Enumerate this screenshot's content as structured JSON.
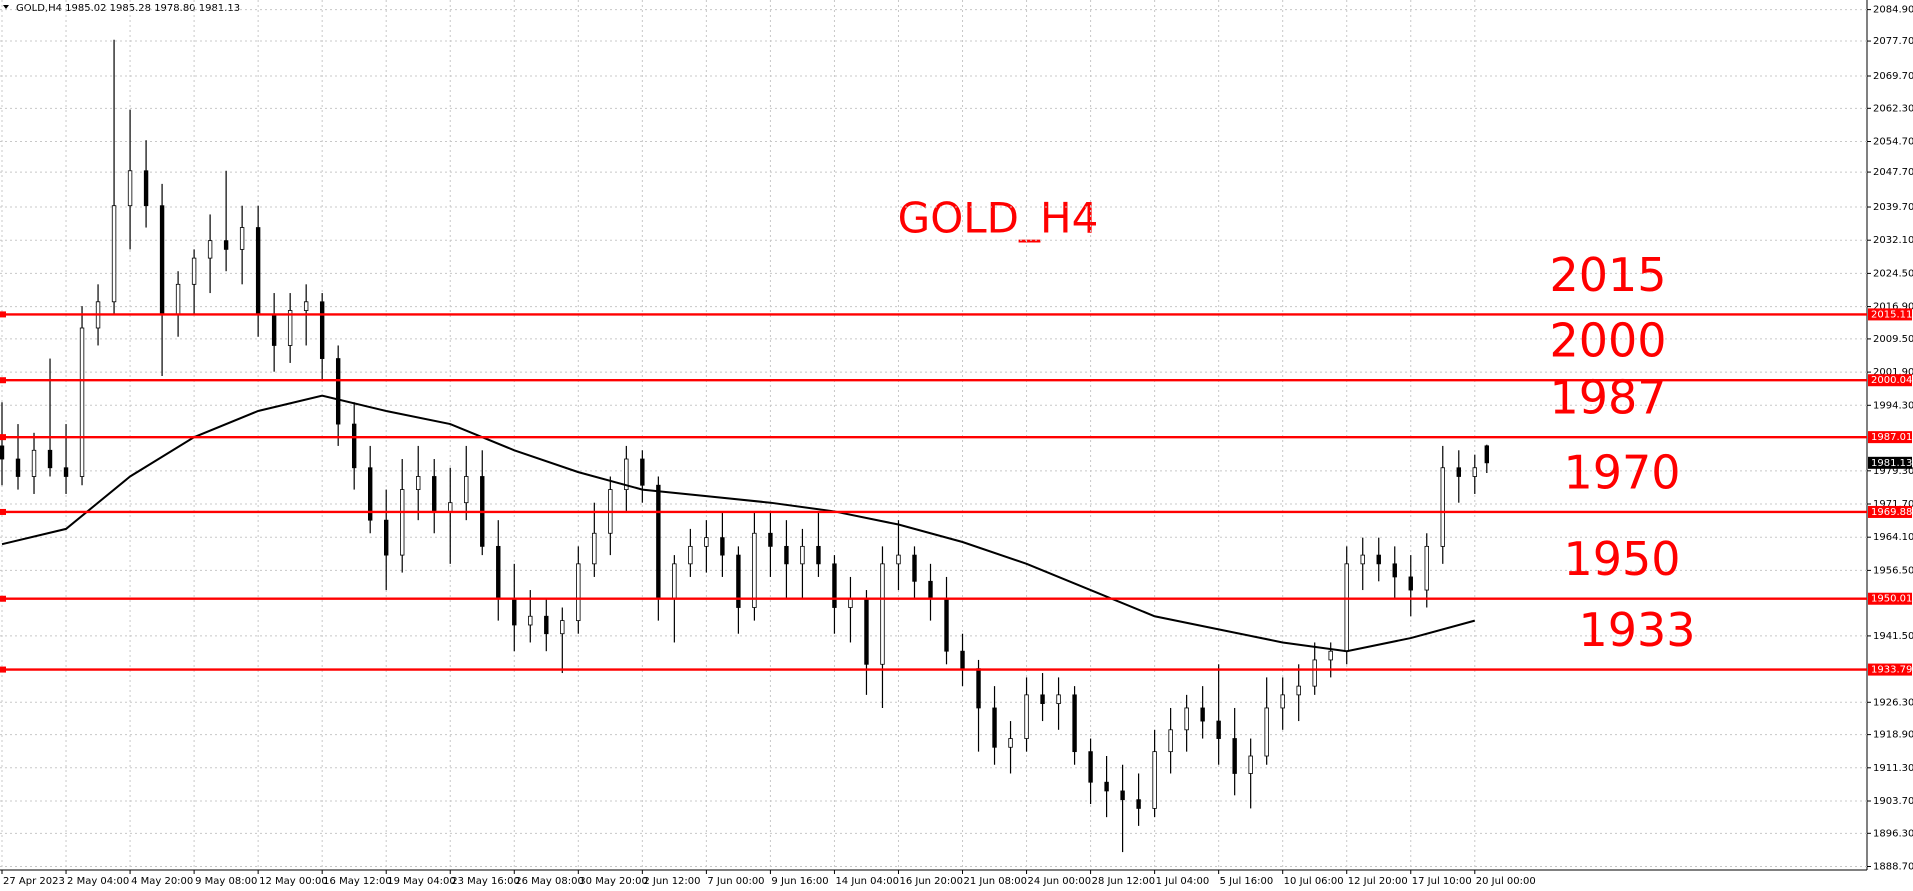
{
  "chart_data": {
    "type": "candlestick",
    "title": "GOLD,H4 1985.02 1985.28 1978.80 1981.13",
    "annotation": "GOLD_H4",
    "xlim": [
      -0.5,
      466
    ],
    "ylim": [
      1887.9,
      2087.1
    ],
    "grid": true,
    "candle_color": "#000000",
    "level_color": "#ff0000",
    "xticks": [
      {
        "value": 0,
        "label": "27 Apr 2023"
      },
      {
        "value": 16,
        "label": "2 May 04:00"
      },
      {
        "value": 32,
        "label": "4 May 20:00"
      },
      {
        "value": 48,
        "label": "9 May 08:00"
      },
      {
        "value": 64,
        "label": "12 May 00:00"
      },
      {
        "value": 80,
        "label": "16 May 12:00"
      },
      {
        "value": 96,
        "label": "19 May 04:00"
      },
      {
        "value": 112,
        "label": "23 May 16:00"
      },
      {
        "value": 128,
        "label": "26 May 08:00"
      },
      {
        "value": 144,
        "label": "30 May 20:00"
      },
      {
        "value": 160,
        "label": "2 Jun 12:00"
      },
      {
        "value": 176,
        "label": "7 Jun 00:00"
      },
      {
        "value": 192,
        "label": "9 Jun 16:00"
      },
      {
        "value": 208,
        "label": "14 Jun 04:00"
      },
      {
        "value": 224,
        "label": "16 Jun 20:00"
      },
      {
        "value": 240,
        "label": "21 Jun 08:00"
      },
      {
        "value": 256,
        "label": "24 Jun 00:00"
      },
      {
        "value": 272,
        "label": "28 Jun 12:00"
      },
      {
        "value": 288,
        "label": "1 Jul 04:00"
      },
      {
        "value": 304,
        "label": "5 Jul 16:00"
      },
      {
        "value": 320,
        "label": "10 Jul 06:00"
      },
      {
        "value": 336,
        "label": "12 Jul 20:00"
      },
      {
        "value": 352,
        "label": "17 Jul 10:00"
      },
      {
        "value": 368,
        "label": "20 Jul 00:00"
      }
    ],
    "yticks": [
      {
        "value": 2084.9,
        "label": "2084.90"
      },
      {
        "value": 2077.7,
        "label": "2077.70"
      },
      {
        "value": 2069.7,
        "label": "2069.70"
      },
      {
        "value": 2062.3,
        "label": "2062.30"
      },
      {
        "value": 2054.7,
        "label": "2054.70"
      },
      {
        "value": 2047.7,
        "label": "2047.70"
      },
      {
        "value": 2039.7,
        "label": "2039.70"
      },
      {
        "value": 2032.1,
        "label": "2032.10"
      },
      {
        "value": 2024.5,
        "label": "2024.50"
      },
      {
        "value": 2016.9,
        "label": "2016.90"
      },
      {
        "value": 2009.5,
        "label": "2009.50"
      },
      {
        "value": 2001.9,
        "label": "2001.90"
      },
      {
        "value": 1994.3,
        "label": "1994.30"
      },
      {
        "value": 1979.3,
        "label": "1979.30"
      },
      {
        "value": 1971.7,
        "label": "1971.70"
      },
      {
        "value": 1964.1,
        "label": "1964.10"
      },
      {
        "value": 1956.5,
        "label": "1956.50"
      },
      {
        "value": 1941.5,
        "label": "1941.50"
      },
      {
        "value": 1926.3,
        "label": "1926.30"
      },
      {
        "value": 1918.9,
        "label": "1918.90"
      },
      {
        "value": 1911.3,
        "label": "1911.30"
      },
      {
        "value": 1903.7,
        "label": "1903.70"
      },
      {
        "value": 1896.3,
        "label": "1896.30"
      },
      {
        "value": 1888.7,
        "label": "1888.70"
      }
    ],
    "levels": [
      {
        "value": 2015.11,
        "annotation": "2015"
      },
      {
        "value": 2000.04,
        "annotation": "2000"
      },
      {
        "value": 1987.01,
        "annotation": "1987"
      },
      {
        "value": 1969.88,
        "annotation": "1970"
      },
      {
        "value": 1950.01,
        "annotation": "1950"
      },
      {
        "value": 1933.79,
        "annotation": "1933"
      }
    ],
    "last_price": 1981.13,
    "x": [
      0,
      4,
      8,
      12,
      16,
      20,
      24,
      28,
      32,
      36,
      40,
      44,
      48,
      52,
      56,
      60,
      64,
      68,
      72,
      76,
      80,
      84,
      88,
      92,
      96,
      100,
      104,
      108,
      112,
      116,
      120,
      124,
      128,
      132,
      136,
      140,
      144,
      148,
      152,
      156,
      160,
      164,
      168,
      172,
      176,
      180,
      184,
      188,
      192,
      196,
      200,
      204,
      208,
      212,
      216,
      220,
      224,
      228,
      232,
      236,
      240,
      244,
      248,
      252,
      256,
      260,
      264,
      268,
      272,
      276,
      280,
      284,
      288,
      292,
      296,
      300,
      304,
      308,
      312,
      316,
      320,
      324,
      328,
      332,
      336,
      340,
      344,
      348,
      352,
      356,
      360,
      364,
      368,
      371
    ],
    "open": [
      1985,
      1982,
      1978,
      1984,
      1980,
      1978,
      2012,
      2018,
      2040,
      2048,
      2040,
      2015,
      2022,
      2028,
      2032,
      2030,
      2035,
      2015,
      2008,
      2016,
      2018,
      2005,
      1990,
      1980,
      1968,
      1960,
      1975,
      1978,
      1970,
      1972,
      1978,
      1962,
      1950,
      1944,
      1946,
      1942,
      1945,
      1958,
      1965,
      1975,
      1982,
      1976,
      1950,
      1958,
      1962,
      1964,
      1960,
      1948,
      1965,
      1962,
      1958,
      1962,
      1958,
      1948,
      1950,
      1935,
      1958,
      1960,
      1954,
      1950,
      1938,
      1934,
      1925,
      1916,
      1918,
      1928,
      1926,
      1928,
      1915,
      1908,
      1906,
      1904,
      1902,
      1915,
      1920,
      1925,
      1922,
      1918,
      1910,
      1914,
      1925,
      1928,
      1930,
      1936,
      1938,
      1958,
      1960,
      1958,
      1955,
      1952,
      1962,
      1980,
      1978,
      1985.02
    ],
    "high": [
      1995,
      1990,
      1988,
      2005,
      1990,
      2017,
      2022,
      2078,
      2062,
      2055,
      2045,
      2025,
      2030,
      2038,
      2048,
      2040,
      2040,
      2020,
      2020,
      2022,
      2020,
      2008,
      1995,
      1985,
      1975,
      1982,
      1985,
      1982,
      1980,
      1985,
      1984,
      1968,
      1958,
      1952,
      1950,
      1948,
      1962,
      1972,
      1978,
      1985,
      1984,
      1978,
      1960,
      1966,
      1968,
      1970,
      1962,
      1970,
      1970,
      1968,
      1966,
      1970,
      1960,
      1955,
      1952,
      1962,
      1968,
      1962,
      1958,
      1955,
      1942,
      1936,
      1930,
      1922,
      1932,
      1933,
      1932,
      1930,
      1918,
      1914,
      1912,
      1910,
      1920,
      1925,
      1928,
      1930,
      1935,
      1925,
      1918,
      1932,
      1932,
      1935,
      1940,
      1940,
      1962,
      1964,
      1964,
      1962,
      1960,
      1965,
      1985,
      1984,
      1983,
      1985.28
    ],
    "low": [
      1976,
      1975,
      1974,
      1978,
      1974,
      1976,
      2008,
      2015,
      2030,
      2035,
      2001,
      2010,
      2015,
      2020,
      2025,
      2022,
      2010,
      2002,
      2004,
      2008,
      2000,
      1985,
      1975,
      1965,
      1952,
      1956,
      1968,
      1965,
      1958,
      1968,
      1960,
      1945,
      1938,
      1940,
      1938,
      1933,
      1942,
      1955,
      1960,
      1970,
      1972,
      1945,
      1940,
      1955,
      1956,
      1955,
      1942,
      1945,
      1955,
      1950,
      1950,
      1955,
      1942,
      1940,
      1928,
      1925,
      1952,
      1950,
      1945,
      1935,
      1930,
      1915,
      1912,
      1910,
      1915,
      1922,
      1920,
      1912,
      1903,
      1900,
      1892,
      1898,
      1900,
      1910,
      1915,
      1918,
      1912,
      1905,
      1902,
      1912,
      1920,
      1922,
      1928,
      1932,
      1935,
      1952,
      1954,
      1950,
      1946,
      1948,
      1958,
      1972,
      1974,
      1978.8
    ],
    "close": [
      1982,
      1978,
      1984,
      1980,
      1978,
      2012,
      2018,
      2040,
      2048,
      2040,
      2015,
      2022,
      2028,
      2032,
      2030,
      2035,
      2015,
      2008,
      2016,
      2018,
      2005,
      1990,
      1980,
      1968,
      1960,
      1975,
      1978,
      1970,
      1972,
      1978,
      1962,
      1950,
      1944,
      1946,
      1942,
      1945,
      1958,
      1965,
      1975,
      1982,
      1976,
      1950,
      1958,
      1962,
      1964,
      1960,
      1948,
      1965,
      1962,
      1958,
      1962,
      1958,
      1948,
      1950,
      1935,
      1958,
      1960,
      1954,
      1950,
      1938,
      1934,
      1925,
      1916,
      1918,
      1928,
      1926,
      1928,
      1915,
      1908,
      1906,
      1904,
      1902,
      1915,
      1920,
      1925,
      1922,
      1918,
      1910,
      1914,
      1925,
      1928,
      1930,
      1936,
      1938,
      1958,
      1960,
      1958,
      1955,
      1952,
      1962,
      1980,
      1978,
      1980,
      1981.13
    ],
    "ma": {
      "color": "#000000",
      "x": [
        0,
        16,
        32,
        48,
        64,
        80,
        96,
        112,
        128,
        144,
        160,
        176,
        192,
        208,
        224,
        240,
        256,
        272,
        288,
        304,
        320,
        336,
        352,
        368
      ],
      "values": [
        1962.5,
        1966,
        1978,
        1987,
        1993,
        1996.5,
        1993,
        1990,
        1984,
        1979,
        1975,
        1973.5,
        1972,
        1970,
        1967,
        1963,
        1958,
        1952,
        1946,
        1943,
        1940,
        1938,
        1941,
        1945
      ]
    }
  }
}
